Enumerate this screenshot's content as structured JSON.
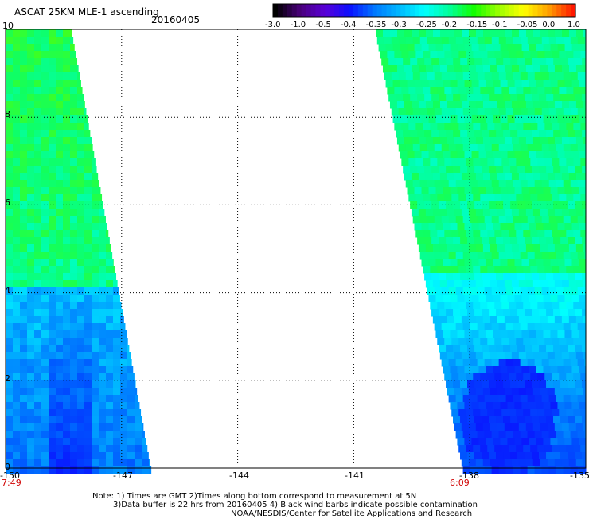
{
  "header": {
    "title": "ASCAT 25KM MLE-1 ascending",
    "date": "20160405"
  },
  "colorbar": {
    "labels": [
      "-3.0",
      "-1.0",
      "-0.5",
      "-0.4",
      "-0.35",
      "-0.3",
      "-0.25",
      "-0.2",
      "-0.15",
      "-0.1",
      "-0.05",
      "0.0",
      "1.0"
    ],
    "colors": [
      "#000000",
      "#4a007a",
      "#5a00d8",
      "#0a10ff",
      "#0078ff",
      "#00b8ff",
      "#00ffff",
      "#00ff9c",
      "#12ff00",
      "#9cff00",
      "#ffff00",
      "#ffa000",
      "#ff1800"
    ]
  },
  "axes": {
    "x_ticks": [
      "-150",
      "-147",
      "-144",
      "-141",
      "-138",
      "-135"
    ],
    "y_ticks": [
      "0",
      "2",
      "4",
      "6",
      "8",
      "10"
    ],
    "times": [
      "7:49",
      "6:09"
    ]
  },
  "notes": {
    "line1": "Note: 1) Times are GMT 2)Times along bottom correspond to measurement at 5N",
    "line2": "3)Data buffer is 22 hrs from 20160405 4) Black wind barbs indicate possible contamination",
    "line3": "NOAA/NESDIS/Center for Satellite Applications and Research"
  },
  "map": {
    "lon_range": [
      -150,
      -135
    ],
    "lat_range": [
      0,
      10
    ],
    "grid": true
  }
}
